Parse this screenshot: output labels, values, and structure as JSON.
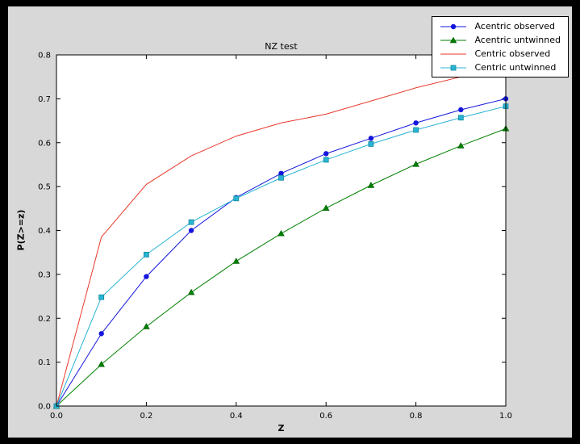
{
  "figure": {
    "background": "#d8d8d8",
    "plot_bg": "#ffffff",
    "frame_color": "#000000"
  },
  "chart_data": {
    "type": "line",
    "title": "NZ test",
    "xlabel": "Z",
    "ylabel": "P(Z>=z)",
    "xlim": [
      0.0,
      1.0
    ],
    "ylim": [
      0.0,
      0.8
    ],
    "grid": false,
    "legend_position": "upper right",
    "xtick_values": [
      0.0,
      0.2,
      0.4,
      0.6,
      0.8,
      1.0
    ],
    "xtick_labels": [
      "0.0",
      "0.2",
      "0.4",
      "0.6",
      "0.8",
      "1.0"
    ],
    "ytick_values": [
      0.0,
      0.1,
      0.2,
      0.3,
      0.4,
      0.5,
      0.6,
      0.7,
      0.8
    ],
    "ytick_labels": [
      "0.0",
      "0.1",
      "0.2",
      "0.3",
      "0.4",
      "0.5",
      "0.6",
      "0.7",
      "0.8"
    ],
    "x": [
      0.0,
      0.1,
      0.2,
      0.3,
      0.4,
      0.5,
      0.6,
      0.7,
      0.8,
      0.9,
      1.0
    ],
    "series": [
      {
        "id": "acentric-observed",
        "name": "Acentric observed",
        "color": "#1515dd",
        "marker": "circle",
        "marker_edge": "#1515dd",
        "values": [
          0.0,
          0.165,
          0.295,
          0.4,
          0.475,
          0.53,
          0.575,
          0.61,
          0.645,
          0.675,
          0.7
        ]
      },
      {
        "id": "acentric-untwinned",
        "name": "Acentric untwinned",
        "color": "#008000",
        "marker": "triangle",
        "marker_edge": "#006400",
        "values": [
          0.0,
          0.095,
          0.181,
          0.259,
          0.33,
          0.393,
          0.451,
          0.503,
          0.551,
          0.593,
          0.632
        ]
      },
      {
        "id": "centric-observed",
        "name": "Centric observed",
        "color": "#e8392b",
        "marker": "none",
        "marker_edge": "#e8392b",
        "values": [
          0.0,
          0.385,
          0.505,
          0.57,
          0.615,
          0.645,
          0.665,
          0.695,
          0.725,
          0.75,
          0.775
        ]
      },
      {
        "id": "centric-untwinned",
        "name": "Centric untwinned",
        "color": "#29b4d4",
        "marker": "square",
        "marker_edge": "#12899f",
        "values": [
          0.0,
          0.248,
          0.345,
          0.419,
          0.473,
          0.52,
          0.561,
          0.597,
          0.629,
          0.657,
          0.683
        ]
      }
    ]
  }
}
